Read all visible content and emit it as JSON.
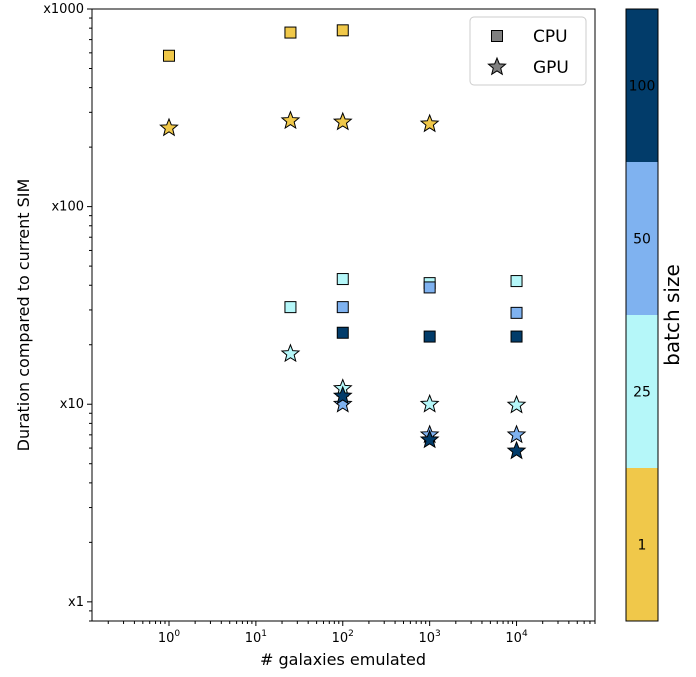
{
  "chart_data": {
    "type": "scatter",
    "xlabel": "# galaxies emulated",
    "ylabel": "Duration compared to current SIM",
    "xscale": "log",
    "yscale": "log",
    "xlim": [
      0.13,
      80000
    ],
    "ylim": [
      0.8,
      1000
    ],
    "x_ticks": [
      {
        "value": 1,
        "base": "10",
        "exp": "0"
      },
      {
        "value": 10,
        "base": "10",
        "exp": "1"
      },
      {
        "value": 100,
        "base": "10",
        "exp": "2"
      },
      {
        "value": 1000,
        "base": "10",
        "exp": "3"
      },
      {
        "value": 10000,
        "base": "10",
        "exp": "4"
      }
    ],
    "y_ticks": [
      {
        "value": 1,
        "label": "x1"
      },
      {
        "value": 10,
        "label": "x10"
      },
      {
        "value": 100,
        "label": "x100"
      },
      {
        "value": 1000,
        "label": "x1000"
      }
    ],
    "grid": false,
    "legend": {
      "placement": "top-right",
      "entries": [
        {
          "label": "CPU",
          "marker": "square",
          "color": "#808080"
        },
        {
          "label": "GPU",
          "marker": "star",
          "color": "#808080"
        }
      ]
    },
    "colorbar": {
      "label": "batch size",
      "levels": [
        {
          "label": "1",
          "color": "#f0c84a"
        },
        {
          "label": "25",
          "color": "#b5f7f9"
        },
        {
          "label": "50",
          "color": "#7fb2f0"
        },
        {
          "label": "100",
          "color": "#023c6a"
        }
      ]
    },
    "series": [
      {
        "marker": "square",
        "points": [
          {
            "x": 1,
            "y": 580,
            "batch": "1"
          },
          {
            "x": 25,
            "y": 760,
            "batch": "1"
          },
          {
            "x": 100,
            "y": 780,
            "batch": "1"
          },
          {
            "x": 25,
            "y": 31,
            "batch": "25"
          },
          {
            "x": 100,
            "y": 43,
            "batch": "25"
          },
          {
            "x": 1000,
            "y": 41,
            "batch": "25"
          },
          {
            "x": 10000,
            "y": 42,
            "batch": "25"
          },
          {
            "x": 100,
            "y": 31,
            "batch": "50"
          },
          {
            "x": 1000,
            "y": 39,
            "batch": "50"
          },
          {
            "x": 10000,
            "y": 29,
            "batch": "50"
          },
          {
            "x": 100,
            "y": 23,
            "batch": "100"
          },
          {
            "x": 1000,
            "y": 22,
            "batch": "100"
          },
          {
            "x": 10000,
            "y": 22,
            "batch": "100"
          }
        ]
      },
      {
        "marker": "star",
        "points": [
          {
            "x": 1,
            "y": 250,
            "batch": "1"
          },
          {
            "x": 25,
            "y": 272,
            "batch": "1"
          },
          {
            "x": 100,
            "y": 268,
            "batch": "1"
          },
          {
            "x": 1000,
            "y": 262,
            "batch": "1"
          },
          {
            "x": 25,
            "y": 18,
            "batch": "25"
          },
          {
            "x": 100,
            "y": 12,
            "batch": "25"
          },
          {
            "x": 1000,
            "y": 10,
            "batch": "25"
          },
          {
            "x": 10000,
            "y": 9.9,
            "batch": "25"
          },
          {
            "x": 100,
            "y": 10,
            "batch": "50"
          },
          {
            "x": 1000,
            "y": 7,
            "batch": "50"
          },
          {
            "x": 10000,
            "y": 7,
            "batch": "50"
          },
          {
            "x": 100,
            "y": 11,
            "batch": "100"
          },
          {
            "x": 1000,
            "y": 6.6,
            "batch": "100"
          },
          {
            "x": 10000,
            "y": 5.8,
            "batch": "100"
          }
        ]
      }
    ]
  }
}
